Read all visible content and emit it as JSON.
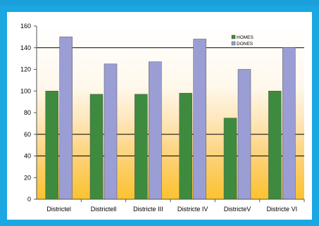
{
  "chart_data": {
    "type": "bar",
    "categories": [
      "Districtel",
      "Districtell",
      "Districte III",
      "Districte IV",
      "DistricteV",
      "Districte VI"
    ],
    "series": [
      {
        "name": "HOMES",
        "values": [
          100,
          97,
          97,
          98,
          75,
          100
        ],
        "color": "#3e8a3e"
      },
      {
        "name": "DONES",
        "values": [
          150,
          125,
          127,
          148,
          120,
          140
        ],
        "color": "#9a9ed4"
      }
    ],
    "yticks": [
      0,
      20,
      40,
      60,
      80,
      100,
      120,
      140,
      160
    ],
    "ylim": [
      0,
      160
    ],
    "grid": [
      40,
      60,
      140
    ],
    "legend_position": "top-right",
    "title": "",
    "xlabel": "",
    "ylabel": ""
  }
}
